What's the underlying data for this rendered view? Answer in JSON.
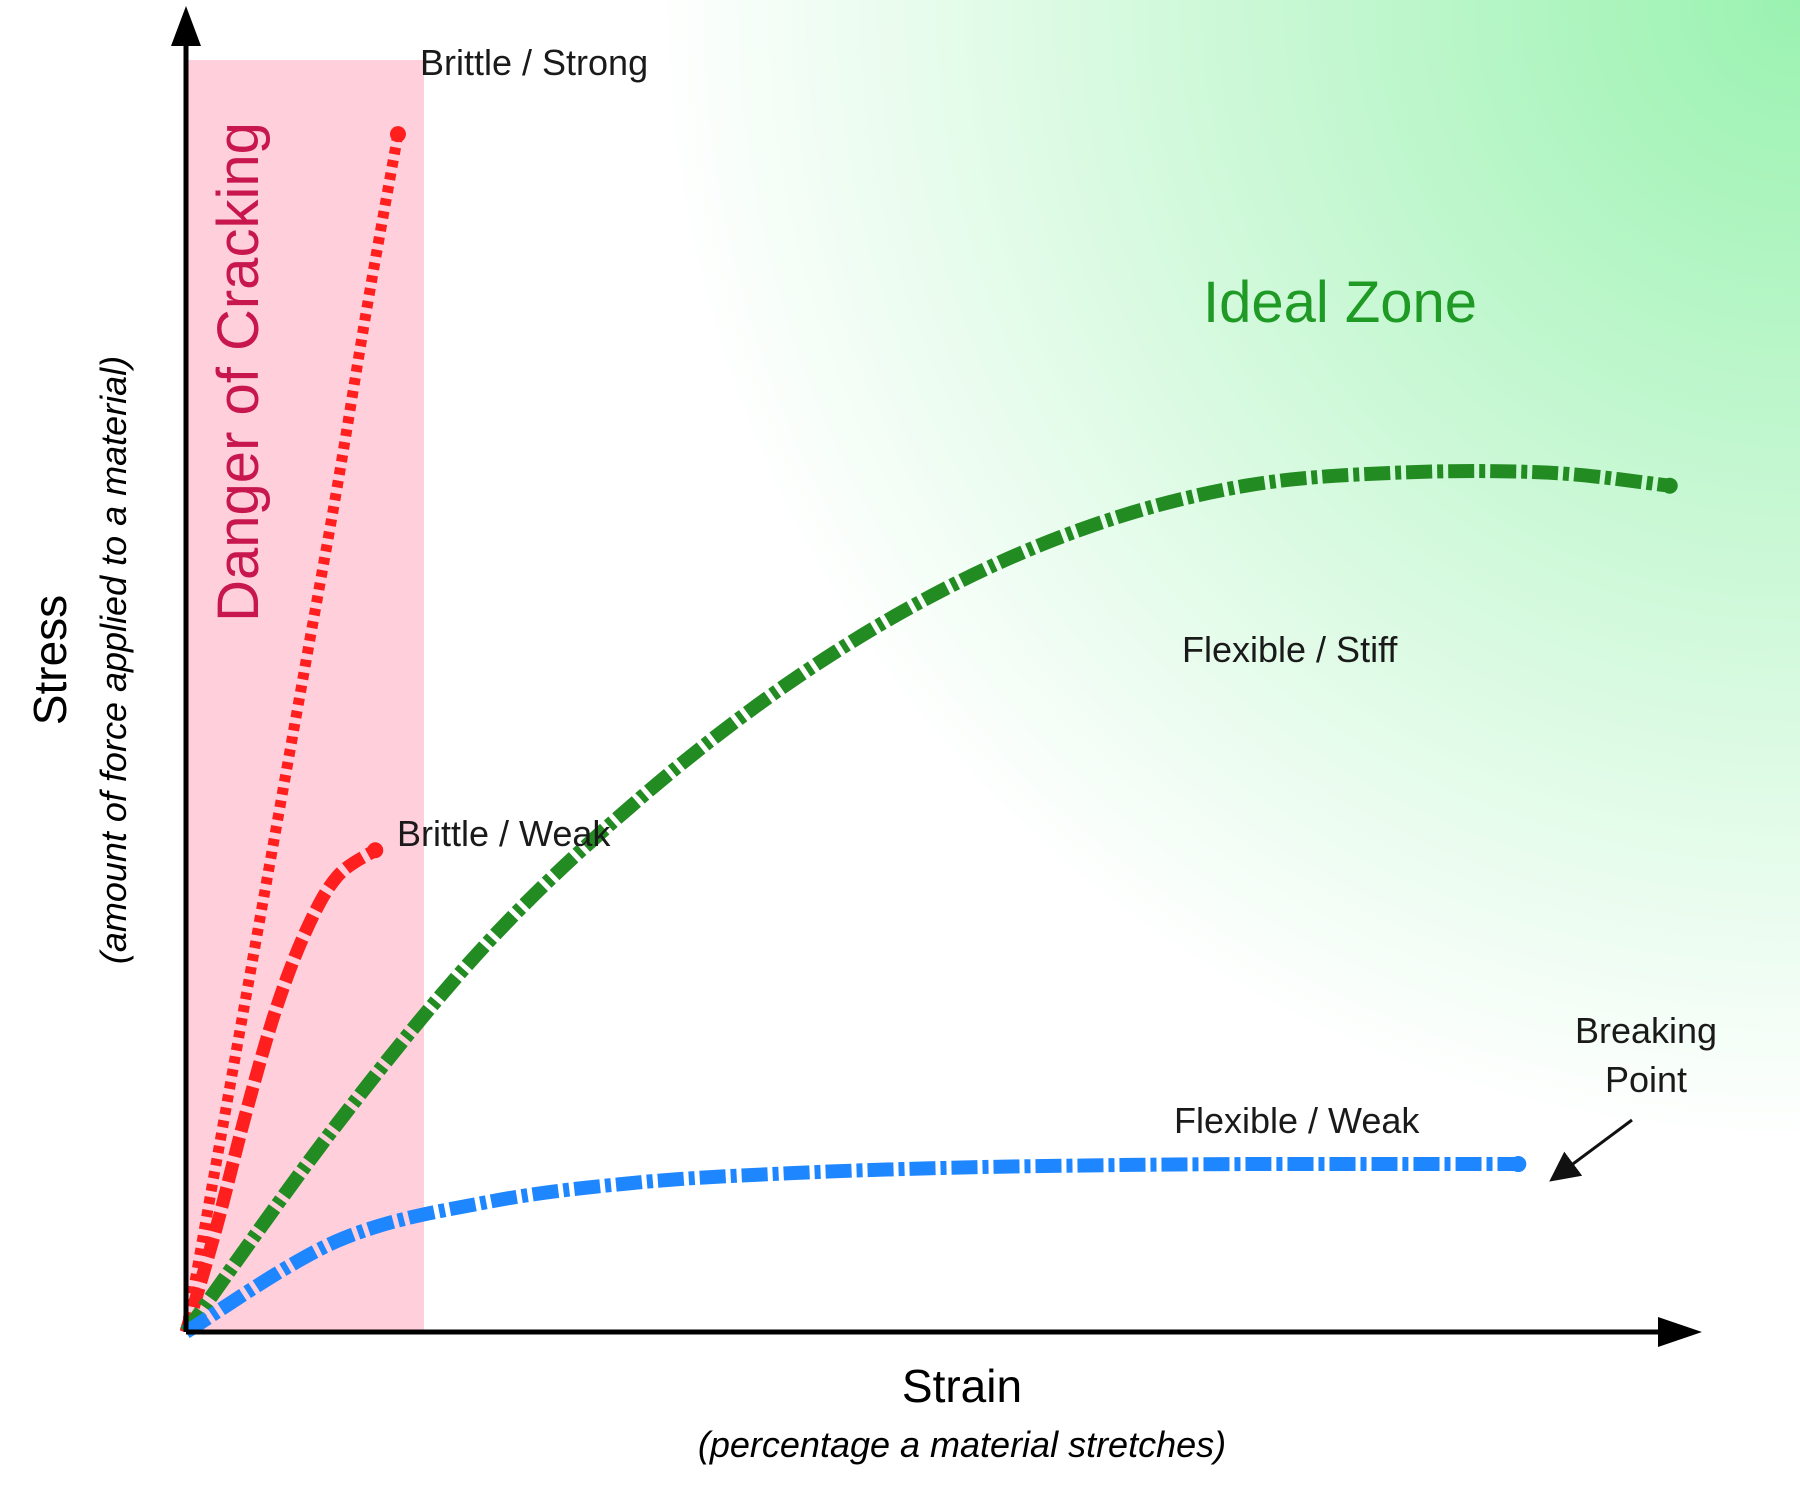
{
  "chart_data": {
    "type": "line",
    "title": "",
    "xlabel": "Strain",
    "xlabel_note": "(percentage a material stretches)",
    "ylabel": "Stress",
    "ylabel_note": "(amount of force applied to a material)",
    "xlim": [
      0,
      100
    ],
    "ylim": [
      0,
      100
    ],
    "grid": false,
    "regions": [
      {
        "name": "danger",
        "label": "Danger of Cracking",
        "x_range": [
          0,
          16
        ],
        "color": "#ffcfdc",
        "text_color": "#c8174f"
      },
      {
        "name": "ideal",
        "label": "Ideal Zone",
        "color": "#9af2b0",
        "text_color": "#1f9a24"
      }
    ],
    "series": [
      {
        "name": "Brittle / Strong",
        "color": "#ff1f1f",
        "style": "dotted",
        "x": [
          0,
          2,
          4,
          6,
          8,
          10,
          12,
          14
        ],
        "y": [
          0,
          13,
          26,
          39,
          52,
          65,
          79,
          92
        ]
      },
      {
        "name": "Brittle / Weak",
        "color": "#ff1f1f",
        "style": "dashed",
        "x": [
          0,
          2,
          4,
          6,
          8,
          10,
          12.5
        ],
        "y": [
          0,
          8,
          17,
          25,
          31,
          35,
          37
        ]
      },
      {
        "name": "Flexible / Stiff",
        "color": "#228b22",
        "style": "dash-dot",
        "x": [
          0,
          10,
          20,
          30,
          40,
          50,
          60,
          70,
          80,
          90,
          98
        ],
        "y": [
          0,
          16,
          30,
          41,
          50,
          57,
          62,
          65,
          66,
          66,
          65
        ]
      },
      {
        "name": "Flexible / Weak",
        "color": "#1e86ff",
        "style": "dash-dot",
        "x": [
          0,
          10,
          20,
          30,
          40,
          50,
          60,
          70,
          80,
          88
        ],
        "y": [
          0,
          7,
          10,
          11.5,
          12.2,
          12.6,
          12.8,
          12.9,
          12.9,
          12.9
        ]
      }
    ],
    "annotations": [
      {
        "text_lines": [
          "Breaking",
          "Point"
        ],
        "target_series": "Flexible / Weak"
      }
    ]
  }
}
